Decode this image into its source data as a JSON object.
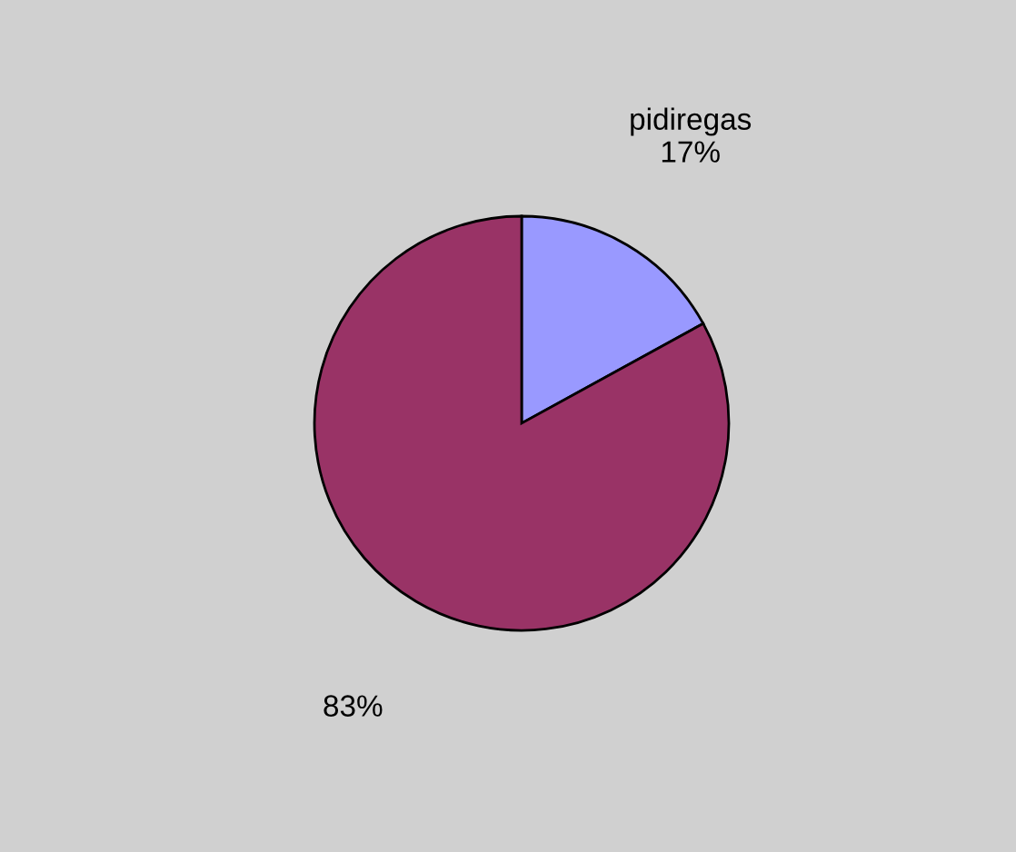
{
  "chart_data": {
    "type": "pie",
    "categories": [
      "pidiregas",
      null
    ],
    "values": [
      17,
      83
    ],
    "value_labels": [
      "17%",
      "83%"
    ],
    "colors": [
      "#9999ff",
      "#993366"
    ],
    "legend": false
  }
}
